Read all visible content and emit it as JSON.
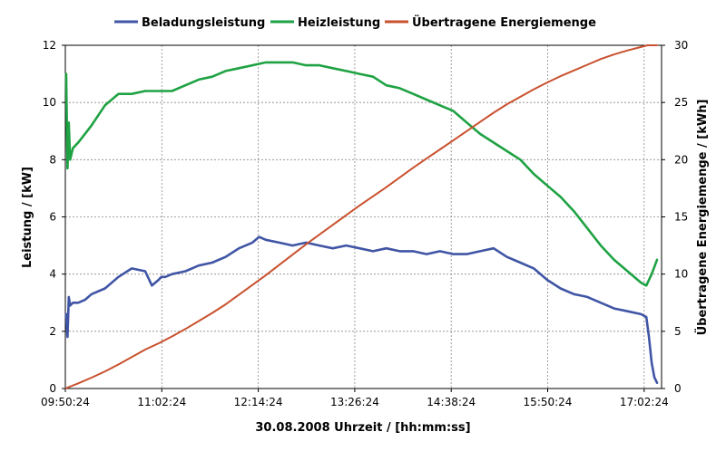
{
  "chart_data": {
    "type": "line",
    "xlabel": "30.08.2008 Uhrzeit / [hh:mm:ss]",
    "ylabel_left": "Leistung / [kW]",
    "ylabel_right": "Übertragene Energiemenge / [kWh]",
    "xlim": [
      "09:50:24",
      "17:15:24"
    ],
    "x_ticks": [
      "09:50:24",
      "11:02:24",
      "12:14:24",
      "13:26:24",
      "14:38:24",
      "15:50:24",
      "17:02:24"
    ],
    "ylim_left": [
      0,
      12
    ],
    "y_ticks_left": [
      "0",
      "2",
      "4",
      "6",
      "8",
      "10",
      "12"
    ],
    "ylim_right": [
      0,
      30
    ],
    "y_ticks_right": [
      "0",
      "5",
      "10",
      "15",
      "20",
      "25",
      "30"
    ],
    "grid": true,
    "legend": "top",
    "series": [
      {
        "name": "Beladungsleistung",
        "axis": "left",
        "color": "#4055a5",
        "x": [
          "09:51:00",
          "09:52:00",
          "09:53:00",
          "09:54:00",
          "09:56:00",
          "10:00:00",
          "10:05:00",
          "10:10:00",
          "10:20:00",
          "10:30:00",
          "10:40:00",
          "10:50:00",
          "10:55:00",
          "11:00:00",
          "11:02:00",
          "11:05:00",
          "11:10:00",
          "11:20:00",
          "11:30:00",
          "11:40:00",
          "11:50:00",
          "12:00:00",
          "12:10:00",
          "12:15:00",
          "12:20:00",
          "12:30:00",
          "12:40:00",
          "12:50:00",
          "13:00:00",
          "13:10:00",
          "13:20:00",
          "13:30:00",
          "13:40:00",
          "13:50:00",
          "14:00:00",
          "14:10:00",
          "14:20:00",
          "14:30:00",
          "14:40:00",
          "14:50:00",
          "15:00:00",
          "15:10:00",
          "15:20:00",
          "15:30:00",
          "15:40:00",
          "15:50:00",
          "16:00:00",
          "16:10:00",
          "16:20:00",
          "16:30:00",
          "16:40:00",
          "16:50:00",
          "17:00:00",
          "17:04:00",
          "17:06:00",
          "17:08:00",
          "17:10:00",
          "17:12:00"
        ],
        "y": [
          2.6,
          1.8,
          3.2,
          2.9,
          3.0,
          3.0,
          3.1,
          3.3,
          3.5,
          3.9,
          4.2,
          4.1,
          3.6,
          3.8,
          3.9,
          3.9,
          4.0,
          4.1,
          4.3,
          4.4,
          4.6,
          4.9,
          5.1,
          5.3,
          5.2,
          5.1,
          5.0,
          5.1,
          5.0,
          4.9,
          5.0,
          4.9,
          4.8,
          4.9,
          4.8,
          4.8,
          4.7,
          4.8,
          4.7,
          4.7,
          4.8,
          4.9,
          4.6,
          4.4,
          4.2,
          3.8,
          3.5,
          3.3,
          3.2,
          3.0,
          2.8,
          2.7,
          2.6,
          2.5,
          1.8,
          0.9,
          0.4,
          0.2
        ]
      },
      {
        "name": "Heizleistung",
        "axis": "left",
        "color": "#1ea243",
        "x": [
          "09:51:00",
          "09:52:00",
          "09:53:00",
          "09:54:00",
          "09:56:00",
          "10:00:00",
          "10:05:00",
          "10:10:00",
          "10:20:00",
          "10:30:00",
          "10:40:00",
          "10:50:00",
          "11:00:00",
          "11:10:00",
          "11:20:00",
          "11:30:00",
          "11:40:00",
          "11:50:00",
          "12:00:00",
          "12:10:00",
          "12:20:00",
          "12:30:00",
          "12:40:00",
          "12:50:00",
          "13:00:00",
          "13:10:00",
          "13:20:00",
          "13:30:00",
          "13:40:00",
          "13:50:00",
          "14:00:00",
          "14:10:00",
          "14:20:00",
          "14:30:00",
          "14:40:00",
          "14:50:00",
          "15:00:00",
          "15:10:00",
          "15:20:00",
          "15:30:00",
          "15:40:00",
          "15:50:00",
          "16:00:00",
          "16:10:00",
          "16:20:00",
          "16:30:00",
          "16:40:00",
          "16:50:00",
          "17:00:00",
          "17:04:00",
          "17:08:00",
          "17:12:00"
        ],
        "y": [
          11.0,
          7.7,
          9.3,
          8.0,
          8.4,
          8.6,
          8.9,
          9.2,
          9.9,
          10.3,
          10.3,
          10.4,
          10.4,
          10.4,
          10.6,
          10.8,
          10.9,
          11.1,
          11.2,
          11.3,
          11.4,
          11.4,
          11.4,
          11.3,
          11.3,
          11.2,
          11.1,
          11.0,
          10.9,
          10.6,
          10.5,
          10.3,
          10.1,
          9.9,
          9.7,
          9.3,
          8.9,
          8.6,
          8.3,
          8.0,
          7.5,
          7.1,
          6.7,
          6.2,
          5.6,
          5.0,
          4.5,
          4.1,
          3.7,
          3.6,
          4.0,
          4.5
        ]
      },
      {
        "name": "Übertragene Energiemenge",
        "axis": "right",
        "color": "#c9512e",
        "x": [
          "09:50:24",
          "10:00:00",
          "10:10:00",
          "10:20:00",
          "10:30:00",
          "10:40:00",
          "10:50:00",
          "11:00:00",
          "11:10:00",
          "11:20:00",
          "11:30:00",
          "11:40:00",
          "11:50:00",
          "12:00:00",
          "12:10:00",
          "12:20:00",
          "12:30:00",
          "12:40:00",
          "12:50:00",
          "13:00:00",
          "13:10:00",
          "13:20:00",
          "13:30:00",
          "13:40:00",
          "13:50:00",
          "14:00:00",
          "14:10:00",
          "14:20:00",
          "14:30:00",
          "14:40:00",
          "14:50:00",
          "15:00:00",
          "15:10:00",
          "15:20:00",
          "15:30:00",
          "15:40:00",
          "15:50:00",
          "16:00:00",
          "16:10:00",
          "16:20:00",
          "16:30:00",
          "16:40:00",
          "16:50:00",
          "17:00:00",
          "17:05:00",
          "17:12:00"
        ],
        "y": [
          0.0,
          0.45,
          0.95,
          1.5,
          2.1,
          2.75,
          3.4,
          3.95,
          4.55,
          5.2,
          5.9,
          6.6,
          7.35,
          8.2,
          9.05,
          9.9,
          10.8,
          11.7,
          12.6,
          13.45,
          14.3,
          15.15,
          16.0,
          16.8,
          17.6,
          18.45,
          19.3,
          20.1,
          20.9,
          21.7,
          22.5,
          23.3,
          24.1,
          24.85,
          25.5,
          26.15,
          26.75,
          27.3,
          27.8,
          28.3,
          28.8,
          29.2,
          29.55,
          29.85,
          30.0,
          30.0
        ]
      }
    ]
  }
}
